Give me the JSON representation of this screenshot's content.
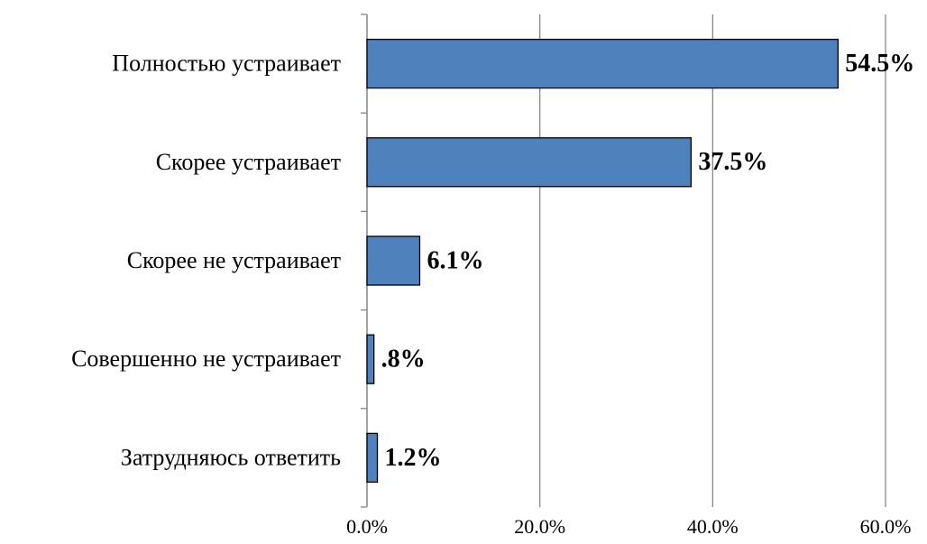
{
  "chart_data": {
    "type": "bar",
    "orientation": "horizontal",
    "categories": [
      "Полностью устраивает",
      "Скорее устраивает",
      "Скорее не устраивает",
      "Совершенно не устраивает",
      "Затрудняюсь ответить"
    ],
    "values": [
      54.5,
      37.5,
      6.1,
      0.8,
      1.2
    ],
    "value_labels": [
      "54.5%",
      "37.5%",
      "6.1%",
      ".8%",
      "1.2%"
    ],
    "color": "#4f81bd",
    "xlim": [
      0,
      60
    ],
    "xticks": [
      {
        "value": 0,
        "label": "0.0%"
      },
      {
        "value": 20,
        "label": "20.0%"
      },
      {
        "value": 40,
        "label": "40.0%"
      },
      {
        "value": 60,
        "label": "60.0%"
      }
    ],
    "grid": true
  }
}
